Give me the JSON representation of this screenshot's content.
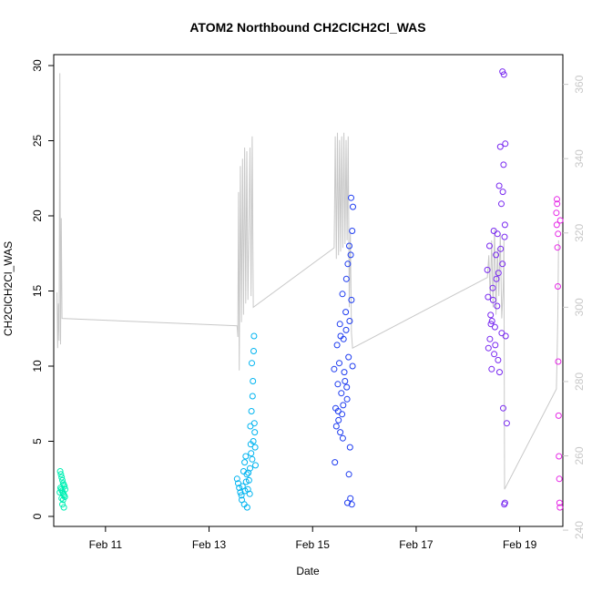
{
  "chart_data": {
    "type": "scatter",
    "title": "ATOM2 Northbound CH2ClCH2Cl_WAS",
    "xlabel": "Date",
    "ylabel": "CH2ClCH2Cl_WAS",
    "xlim": [
      "2020-02-10T00:00",
      "2020-02-19T20:00"
    ],
    "ylim": [
      0,
      30
    ],
    "y2lim": [
      241,
      368
    ],
    "x_ticks": [
      {
        "label": "Feb 11",
        "x": "2020-02-11T00:00"
      },
      {
        "label": "Feb 13",
        "x": "2020-02-13T00:00"
      },
      {
        "label": "Feb 15",
        "x": "2020-02-15T00:00"
      },
      {
        "label": "Feb 17",
        "x": "2020-02-17T00:00"
      },
      {
        "label": "Feb 19",
        "x": "2020-02-19T00:00"
      }
    ],
    "y_ticks": [
      "0",
      "5",
      "10",
      "15",
      "20",
      "25",
      "30"
    ],
    "y2_ticks": [
      "240",
      "260",
      "280",
      "300",
      "320",
      "340",
      "360"
    ],
    "grid": false,
    "legend": "none",
    "series": [
      {
        "color": "#00f0b4",
        "points": [
          [
            "2020-02-10T03:00",
            3.0
          ],
          [
            "2020-02-10T03:20",
            2.8
          ],
          [
            "2020-02-10T03:40",
            2.6
          ],
          [
            "2020-02-10T04:00",
            2.4
          ],
          [
            "2020-02-10T04:20",
            2.2
          ],
          [
            "2020-02-10T04:40",
            2.1
          ],
          [
            "2020-02-10T05:00",
            2.0
          ],
          [
            "2020-02-10T03:10",
            1.9
          ],
          [
            "2020-02-10T03:30",
            1.8
          ],
          [
            "2020-02-10T03:50",
            1.7
          ],
          [
            "2020-02-10T04:10",
            1.6
          ],
          [
            "2020-02-10T04:30",
            1.5
          ],
          [
            "2020-02-10T04:50",
            1.4
          ],
          [
            "2020-02-10T05:10",
            1.3
          ],
          [
            "2020-02-10T03:40",
            1.2
          ],
          [
            "2020-02-10T04:20",
            1.1
          ],
          [
            "2020-02-10T04:00",
            0.8
          ],
          [
            "2020-02-10T04:40",
            0.6
          ],
          [
            "2020-02-10T02:50",
            1.6
          ],
          [
            "2020-02-10T05:20",
            1.8
          ]
        ]
      },
      {
        "color": "#00b4f0",
        "points": [
          [
            "2020-02-13T13:00",
            2.5
          ],
          [
            "2020-02-13T13:30",
            2.2
          ],
          [
            "2020-02-13T14:00",
            1.9
          ],
          [
            "2020-02-13T14:30",
            1.6
          ],
          [
            "2020-02-13T15:00",
            1.4
          ],
          [
            "2020-02-13T15:30",
            2.0
          ],
          [
            "2020-02-13T16:00",
            3.0
          ],
          [
            "2020-02-13T16:30",
            3.6
          ],
          [
            "2020-02-13T17:00",
            4.0
          ],
          [
            "2020-02-13T17:30",
            2.8
          ],
          [
            "2020-02-13T18:00",
            1.8
          ],
          [
            "2020-02-13T18:30",
            2.4
          ],
          [
            "2020-02-13T19:00",
            3.2
          ],
          [
            "2020-02-13T19:30",
            4.2
          ],
          [
            "2020-02-13T20:00",
            3.8
          ],
          [
            "2020-02-13T20:30",
            5.0
          ],
          [
            "2020-02-13T21:00",
            6.2
          ],
          [
            "2020-02-13T21:30",
            3.4
          ],
          [
            "2020-02-13T15:10",
            1.1
          ],
          [
            "2020-02-13T16:20",
            0.8
          ],
          [
            "2020-02-13T17:40",
            0.6
          ],
          [
            "2020-02-13T18:50",
            1.5
          ],
          [
            "2020-02-13T19:10",
            6.0
          ],
          [
            "2020-02-13T19:40",
            7.0
          ],
          [
            "2020-02-13T20:10",
            8.0
          ],
          [
            "2020-02-13T20:20",
            9.0
          ],
          [
            "2020-02-13T19:50",
            10.2
          ],
          [
            "2020-02-13T20:40",
            11.0
          ],
          [
            "2020-02-13T20:50",
            12.0
          ],
          [
            "2020-02-13T21:10",
            5.6
          ],
          [
            "2020-02-13T21:20",
            4.6
          ],
          [
            "2020-02-13T19:20",
            4.8
          ],
          [
            "2020-02-13T18:10",
            2.9
          ],
          [
            "2020-02-13T17:10",
            2.3
          ],
          [
            "2020-02-13T16:40",
            1.7
          ]
        ]
      },
      {
        "color": "#1e3cf0",
        "points": [
          [
            "2020-02-15T10:00",
            9.8
          ],
          [
            "2020-02-15T10:40",
            7.2
          ],
          [
            "2020-02-15T11:20",
            11.4
          ],
          [
            "2020-02-15T12:00",
            6.4
          ],
          [
            "2020-02-15T12:40",
            12.8
          ],
          [
            "2020-02-15T13:20",
            8.2
          ],
          [
            "2020-02-15T14:00",
            5.2
          ],
          [
            "2020-02-15T14:40",
            9.6
          ],
          [
            "2020-02-15T15:20",
            13.6
          ],
          [
            "2020-02-15T16:00",
            7.8
          ],
          [
            "2020-02-15T16:40",
            10.6
          ],
          [
            "2020-02-15T17:20",
            4.6
          ],
          [
            "2020-02-15T18:00",
            14.4
          ],
          [
            "2020-02-15T10:20",
            3.6
          ],
          [
            "2020-02-15T11:00",
            6.0
          ],
          [
            "2020-02-15T11:40",
            8.8
          ],
          [
            "2020-02-15T12:20",
            10.2
          ],
          [
            "2020-02-15T13:00",
            12.0
          ],
          [
            "2020-02-15T13:40",
            6.8
          ],
          [
            "2020-02-15T14:20",
            11.8
          ],
          [
            "2020-02-15T15:00",
            9.0
          ],
          [
            "2020-02-15T15:40",
            15.8
          ],
          [
            "2020-02-15T16:20",
            16.8
          ],
          [
            "2020-02-15T17:00",
            18.0
          ],
          [
            "2020-02-15T17:40",
            17.4
          ],
          [
            "2020-02-15T18:20",
            19.0
          ],
          [
            "2020-02-15T18:40",
            20.6
          ],
          [
            "2020-02-15T17:50",
            21.2
          ],
          [
            "2020-02-15T16:50",
            2.8
          ],
          [
            "2020-02-15T17:30",
            1.2
          ],
          [
            "2020-02-15T18:10",
            0.8
          ],
          [
            "2020-02-15T16:10",
            0.9
          ],
          [
            "2020-02-15T14:10",
            7.4
          ],
          [
            "2020-02-15T12:50",
            5.6
          ],
          [
            "2020-02-15T11:50",
            7.0
          ],
          [
            "2020-02-15T15:50",
            8.6
          ],
          [
            "2020-02-15T17:10",
            13.0
          ],
          [
            "2020-02-15T18:30",
            10.0
          ],
          [
            "2020-02-15T13:50",
            14.8
          ],
          [
            "2020-02-15T15:30",
            12.4
          ]
        ]
      },
      {
        "color": "#7828f0",
        "points": [
          [
            "2020-02-18T09:00",
            16.4
          ],
          [
            "2020-02-18T09:30",
            11.2
          ],
          [
            "2020-02-18T10:00",
            18.0
          ],
          [
            "2020-02-18T10:30",
            13.4
          ],
          [
            "2020-02-18T11:00",
            9.8
          ],
          [
            "2020-02-18T11:30",
            15.2
          ],
          [
            "2020-02-18T12:00",
            19.0
          ],
          [
            "2020-02-18T12:30",
            12.6
          ],
          [
            "2020-02-18T13:00",
            17.4
          ],
          [
            "2020-02-18T13:30",
            14.0
          ],
          [
            "2020-02-18T14:00",
            10.4
          ],
          [
            "2020-02-18T14:30",
            22.0
          ],
          [
            "2020-02-18T15:00",
            24.6
          ],
          [
            "2020-02-18T15:30",
            20.8
          ],
          [
            "2020-02-18T16:00",
            16.8
          ],
          [
            "2020-02-18T16:30",
            23.4
          ],
          [
            "2020-02-18T17:00",
            18.6
          ],
          [
            "2020-02-18T17:30",
            12.0
          ],
          [
            "2020-02-18T18:00",
            6.2
          ],
          [
            "2020-02-18T09:20",
            14.6
          ],
          [
            "2020-02-18T10:10",
            11.8
          ],
          [
            "2020-02-18T11:10",
            13.0
          ],
          [
            "2020-02-18T12:10",
            10.8
          ],
          [
            "2020-02-18T13:10",
            15.8
          ],
          [
            "2020-02-18T14:10",
            16.2
          ],
          [
            "2020-02-18T15:10",
            17.8
          ],
          [
            "2020-02-18T16:10",
            21.6
          ],
          [
            "2020-02-18T17:10",
            19.4
          ],
          [
            "2020-02-18T16:00",
            29.6
          ],
          [
            "2020-02-18T16:40",
            29.4
          ],
          [
            "2020-02-18T17:20",
            24.8
          ],
          [
            "2020-02-18T16:20",
            7.2
          ],
          [
            "2020-02-18T16:50",
            0.8
          ],
          [
            "2020-02-18T17:10",
            0.9
          ],
          [
            "2020-02-18T15:40",
            12.2
          ],
          [
            "2020-02-18T14:40",
            9.6
          ],
          [
            "2020-02-18T13:40",
            18.8
          ],
          [
            "2020-02-18T12:40",
            11.4
          ],
          [
            "2020-02-18T11:40",
            14.4
          ],
          [
            "2020-02-18T10:40",
            12.8
          ]
        ]
      },
      {
        "color": "#e628e6",
        "points": [
          [
            "2020-02-19T17:00",
            20.2
          ],
          [
            "2020-02-19T17:10",
            19.4
          ],
          [
            "2020-02-19T17:20",
            20.8
          ],
          [
            "2020-02-19T17:30",
            17.9
          ],
          [
            "2020-02-19T17:40",
            15.3
          ],
          [
            "2020-02-19T17:50",
            10.3
          ],
          [
            "2020-02-19T18:00",
            6.7
          ],
          [
            "2020-02-19T18:10",
            4.0
          ],
          [
            "2020-02-19T18:20",
            2.5
          ],
          [
            "2020-02-19T18:30",
            0.9
          ],
          [
            "2020-02-19T18:40",
            0.6
          ],
          [
            "2020-02-19T18:50",
            19.7
          ],
          [
            "2020-02-19T17:15",
            21.1
          ],
          [
            "2020-02-19T17:45",
            18.8
          ]
        ]
      }
    ],
    "line_series": {
      "color": "#c8c8c8",
      "axis": "right",
      "points": [
        [
          "2020-02-10T01:30",
          304
        ],
        [
          "2020-02-10T01:50",
          289
        ],
        [
          "2020-02-10T02:10",
          301
        ],
        [
          "2020-02-10T02:30",
          291
        ],
        [
          "2020-02-10T02:50",
          363
        ],
        [
          "2020-02-10T03:10",
          290
        ],
        [
          "2020-02-10T03:30",
          324
        ],
        [
          "2020-02-10T03:50",
          297
        ],
        [
          "2020-02-13T13:00",
          295
        ],
        [
          "2020-02-13T13:20",
          292
        ],
        [
          "2020-02-13T13:40",
          331
        ],
        [
          "2020-02-13T14:00",
          283
        ],
        [
          "2020-02-13T14:30",
          338
        ],
        [
          "2020-02-13T15:00",
          296
        ],
        [
          "2020-02-13T15:30",
          340
        ],
        [
          "2020-02-13T16:00",
          298
        ],
        [
          "2020-02-13T16:30",
          343
        ],
        [
          "2020-02-13T17:00",
          301
        ],
        [
          "2020-02-13T17:30",
          342
        ],
        [
          "2020-02-13T18:00",
          302
        ],
        [
          "2020-02-13T19:00",
          343
        ],
        [
          "2020-02-13T19:30",
          303
        ],
        [
          "2020-02-13T20:00",
          346
        ],
        [
          "2020-02-13T20:30",
          300
        ],
        [
          "2020-02-15T10:00",
          316
        ],
        [
          "2020-02-15T10:30",
          346
        ],
        [
          "2020-02-15T11:00",
          313
        ],
        [
          "2020-02-15T11:30",
          347
        ],
        [
          "2020-02-15T12:00",
          314
        ],
        [
          "2020-02-15T12:30",
          345
        ],
        [
          "2020-02-15T13:00",
          315
        ],
        [
          "2020-02-15T13:30",
          346
        ],
        [
          "2020-02-15T14:00",
          316
        ],
        [
          "2020-02-15T14:30",
          347
        ],
        [
          "2020-02-15T15:00",
          317
        ],
        [
          "2020-02-15T15:30",
          345
        ],
        [
          "2020-02-15T16:00",
          318
        ],
        [
          "2020-02-15T16:30",
          346
        ],
        [
          "2020-02-15T17:00",
          300
        ],
        [
          "2020-02-15T17:30",
          320
        ],
        [
          "2020-02-15T18:00",
          293
        ],
        [
          "2020-02-15T18:30",
          289
        ],
        [
          "2020-02-18T09:00",
          308
        ],
        [
          "2020-02-18T09:40",
          314
        ],
        [
          "2020-02-18T10:20",
          302
        ],
        [
          "2020-02-18T11:00",
          318
        ],
        [
          "2020-02-18T11:40",
          300
        ],
        [
          "2020-02-18T12:20",
          321
        ],
        [
          "2020-02-18T13:00",
          298
        ],
        [
          "2020-02-18T13:40",
          316
        ],
        [
          "2020-02-18T14:20",
          303
        ],
        [
          "2020-02-18T15:00",
          320
        ],
        [
          "2020-02-18T15:40",
          297
        ],
        [
          "2020-02-18T16:20",
          305
        ],
        [
          "2020-02-18T16:40",
          318
        ],
        [
          "2020-02-18T17:00",
          251
        ],
        [
          "2020-02-19T17:00",
          278
        ],
        [
          "2020-02-19T17:20",
          287
        ],
        [
          "2020-02-19T17:40",
          298
        ],
        [
          "2020-02-19T18:00",
          318
        ]
      ]
    }
  }
}
